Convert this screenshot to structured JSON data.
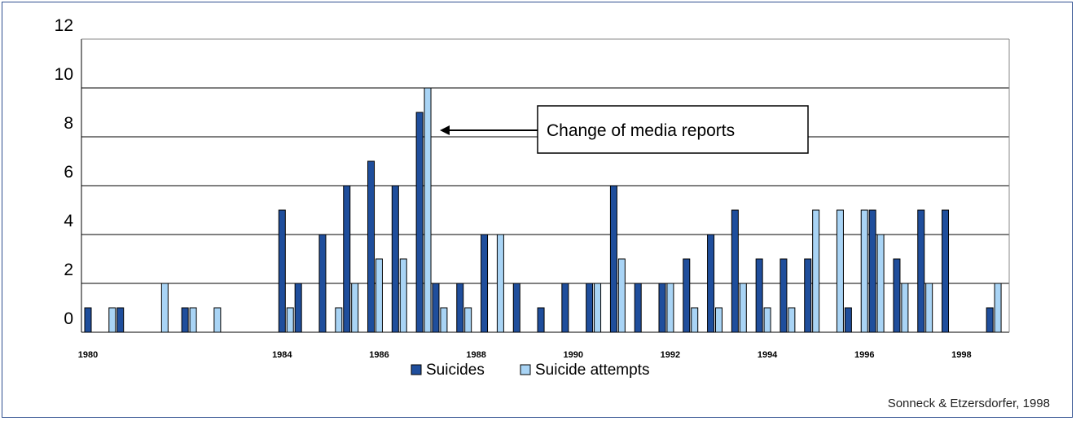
{
  "chart_data": {
    "type": "bar",
    "ylim": [
      0,
      12
    ],
    "ytick_labels": [
      "0",
      "2",
      "4",
      "6",
      "8",
      "10",
      "12"
    ],
    "xtick_labels": [
      {
        "label": "1980",
        "month": 0
      },
      {
        "label": "1984",
        "month": 48
      },
      {
        "label": "1986",
        "month": 72
      },
      {
        "label": "1988",
        "month": 96
      },
      {
        "label": "1990",
        "month": 120
      },
      {
        "label": "1992",
        "month": 144
      },
      {
        "label": "1994",
        "month": 168
      },
      {
        "label": "1996",
        "month": 192
      },
      {
        "label": "1998",
        "month": 216
      }
    ],
    "x_range_months": [
      0,
      227
    ],
    "series": [
      {
        "name": "Suicides",
        "color": "#1f4e9c",
        "points": [
          {
            "month": 0,
            "value": 1
          },
          {
            "month": 8,
            "value": 1
          },
          {
            "month": 19,
            "value": 0
          },
          {
            "month": 24,
            "value": 1
          },
          {
            "month": 28,
            "value": 0
          },
          {
            "month": 48,
            "value": 5
          },
          {
            "month": 52,
            "value": 2
          },
          {
            "month": 58,
            "value": 4
          },
          {
            "month": 64,
            "value": 6
          },
          {
            "month": 70,
            "value": 7
          },
          {
            "month": 76,
            "value": 6
          },
          {
            "month": 82,
            "value": 9
          },
          {
            "month": 86,
            "value": 2
          },
          {
            "month": 92,
            "value": 2
          },
          {
            "month": 98,
            "value": 4
          },
          {
            "month": 106,
            "value": 2
          },
          {
            "month": 112,
            "value": 1
          },
          {
            "month": 118,
            "value": 2
          },
          {
            "month": 124,
            "value": 2
          },
          {
            "month": 130,
            "value": 6
          },
          {
            "month": 136,
            "value": 2
          },
          {
            "month": 142,
            "value": 2
          },
          {
            "month": 148,
            "value": 3
          },
          {
            "month": 154,
            "value": 4
          },
          {
            "month": 160,
            "value": 5
          },
          {
            "month": 166,
            "value": 3
          },
          {
            "month": 172,
            "value": 3
          },
          {
            "month": 178,
            "value": 3
          },
          {
            "month": 188,
            "value": 1
          },
          {
            "month": 194,
            "value": 5
          },
          {
            "month": 200,
            "value": 3
          },
          {
            "month": 206,
            "value": 5
          },
          {
            "month": 212,
            "value": 5
          },
          {
            "month": 223,
            "value": 1
          }
        ]
      },
      {
        "name": "Suicide attempts",
        "color": "#a9d4f5",
        "points": [
          {
            "month": 6,
            "value": 1
          },
          {
            "month": 19,
            "value": 2
          },
          {
            "month": 26,
            "value": 1
          },
          {
            "month": 32,
            "value": 1
          },
          {
            "month": 50,
            "value": 1
          },
          {
            "month": 62,
            "value": 1
          },
          {
            "month": 66,
            "value": 2
          },
          {
            "month": 72,
            "value": 3
          },
          {
            "month": 78,
            "value": 3
          },
          {
            "month": 84,
            "value": 10
          },
          {
            "month": 88,
            "value": 1
          },
          {
            "month": 94,
            "value": 1
          },
          {
            "month": 102,
            "value": 4
          },
          {
            "month": 126,
            "value": 2
          },
          {
            "month": 132,
            "value": 3
          },
          {
            "month": 144,
            "value": 2
          },
          {
            "month": 150,
            "value": 1
          },
          {
            "month": 156,
            "value": 1
          },
          {
            "month": 162,
            "value": 2
          },
          {
            "month": 168,
            "value": 1
          },
          {
            "month": 174,
            "value": 1
          },
          {
            "month": 180,
            "value": 5
          },
          {
            "month": 186,
            "value": 5
          },
          {
            "month": 192,
            "value": 5
          },
          {
            "month": 196,
            "value": 4
          },
          {
            "month": 202,
            "value": 2
          },
          {
            "month": 208,
            "value": 2
          },
          {
            "month": 225,
            "value": 2
          }
        ]
      }
    ],
    "legend": {
      "placement": "bottom-center",
      "items": [
        "Suicides",
        "Suicide attempts"
      ]
    },
    "grid": true,
    "annotation": {
      "text": "Change of media reports",
      "points_to_month": 85
    }
  },
  "source_note": "Sonneck & Etzersdorfer, 1998",
  "colors": {
    "frame": "#2f4f8f",
    "grid": "#000000"
  }
}
